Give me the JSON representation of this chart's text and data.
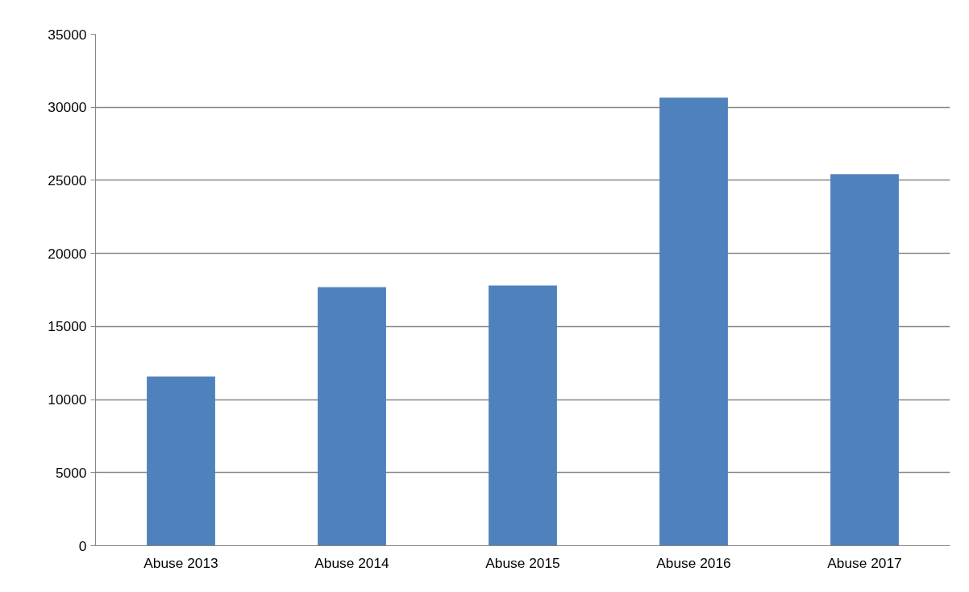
{
  "chart_data": {
    "type": "bar",
    "categories": [
      "Abuse 2013",
      "Abuse 2014",
      "Abuse 2015",
      "Abuse 2016",
      "Abuse 2017"
    ],
    "values": [
      11570,
      17690,
      17800,
      30660,
      25420
    ],
    "color": "#4f81bd",
    "ylim": [
      0,
      35000
    ],
    "yticks": [
      0,
      5000,
      10000,
      15000,
      20000,
      25000,
      30000,
      35000
    ],
    "grid": "y"
  }
}
